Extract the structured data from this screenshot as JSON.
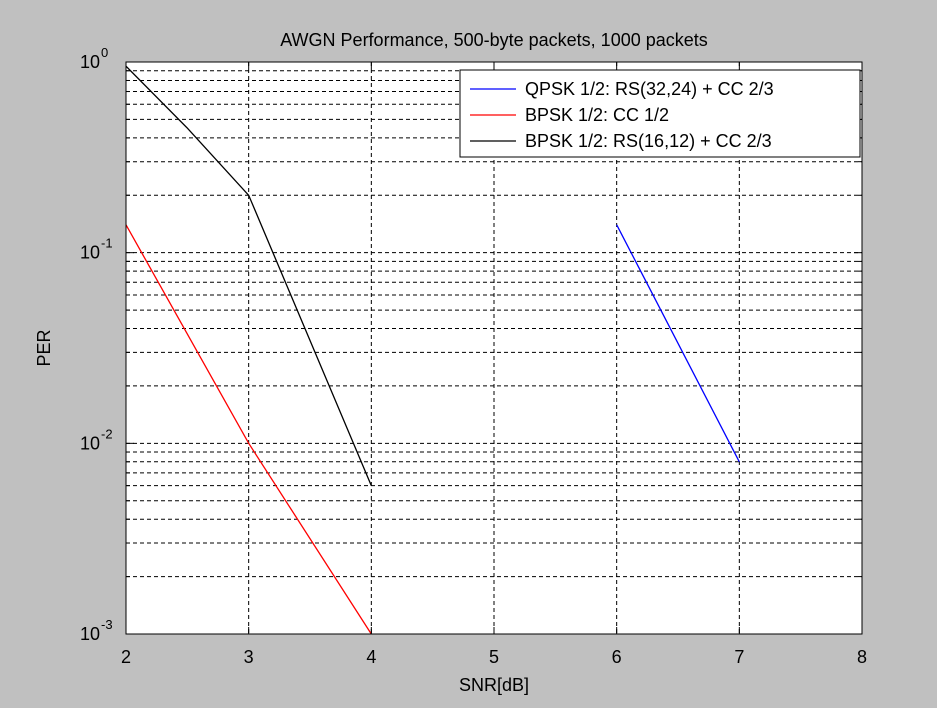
{
  "figure": {
    "background": "#c0c0c0",
    "axes_background": "#ffffff"
  },
  "chart_data": {
    "type": "line",
    "title": "AWGN Performance, 500-byte packets, 1000 packets",
    "xlabel": "SNR[dB]",
    "ylabel": "PER",
    "xlim": [
      2,
      8
    ],
    "ylim": [
      0.001,
      1
    ],
    "yscale": "log",
    "grid": true,
    "grid_style": "dashed",
    "legend_position": "top-right",
    "x_ticks": [
      2,
      3,
      4,
      5,
      6,
      7,
      8
    ],
    "x_tick_labels": [
      "2",
      "3",
      "4",
      "5",
      "6",
      "7",
      "8"
    ],
    "y_ticks": [
      {
        "value": 0.001,
        "base": "10",
        "exp": "-3"
      },
      {
        "value": 0.01,
        "base": "10",
        "exp": "-2"
      },
      {
        "value": 0.1,
        "base": "10",
        "exp": "-1"
      },
      {
        "value": 1,
        "base": "10",
        "exp": "0"
      }
    ],
    "series": [
      {
        "name": "QPSK 1/2: RS(32,24) + CC 2/3",
        "color": "#0000ff",
        "x": [
          6,
          7
        ],
        "y": [
          0.14,
          0.008
        ]
      },
      {
        "name": "BPSK 1/2: CC 1/2",
        "color": "#ff0000",
        "x": [
          2,
          3,
          4
        ],
        "y": [
          0.14,
          0.01,
          0.001
        ]
      },
      {
        "name": "BPSK 1/2: RS(16,12) + CC 2/3",
        "color": "#000000",
        "x": [
          2,
          2.5,
          3,
          4
        ],
        "y": [
          0.95,
          0.45,
          0.2,
          0.006
        ]
      }
    ]
  }
}
